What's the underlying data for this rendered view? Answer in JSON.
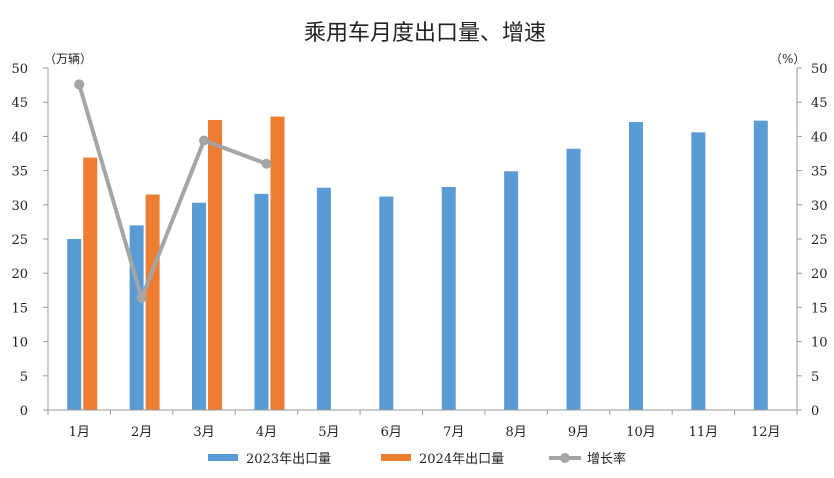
{
  "chart_data": {
    "type": "bar",
    "title": "乘用车月度出口量、增速",
    "ylabel_left": "（万辆）",
    "ylabel_right": "（%）",
    "ylim_left": [
      0,
      50
    ],
    "ylim_right": [
      0,
      50
    ],
    "yticks": [
      "0",
      "5",
      "10",
      "15",
      "20",
      "25",
      "30",
      "35",
      "40",
      "45",
      "50"
    ],
    "categories": [
      "1月",
      "2月",
      "3月",
      "4月",
      "5月",
      "6月",
      "7月",
      "8月",
      "9月",
      "10月",
      "11月",
      "12月"
    ],
    "series": [
      {
        "name": "2023年出口量",
        "type": "bar",
        "color": "#5B9BD5",
        "values": [
          25.0,
          27.0,
          30.3,
          31.6,
          32.5,
          31.2,
          32.6,
          34.9,
          38.2,
          42.1,
          40.6,
          42.3
        ]
      },
      {
        "name": "2024年出口量",
        "type": "bar",
        "color": "#ED7D31",
        "values": [
          36.9,
          31.5,
          42.4,
          42.9,
          null,
          null,
          null,
          null,
          null,
          null,
          null,
          null
        ]
      },
      {
        "name": "增长率",
        "type": "line",
        "axis": "right",
        "color": "#A5A5A5",
        "values": [
          47.6,
          16.4,
          39.4,
          36.0,
          null,
          null,
          null,
          null,
          null,
          null,
          null,
          null
        ]
      }
    ],
    "legend_position": "bottom",
    "grid": false
  }
}
